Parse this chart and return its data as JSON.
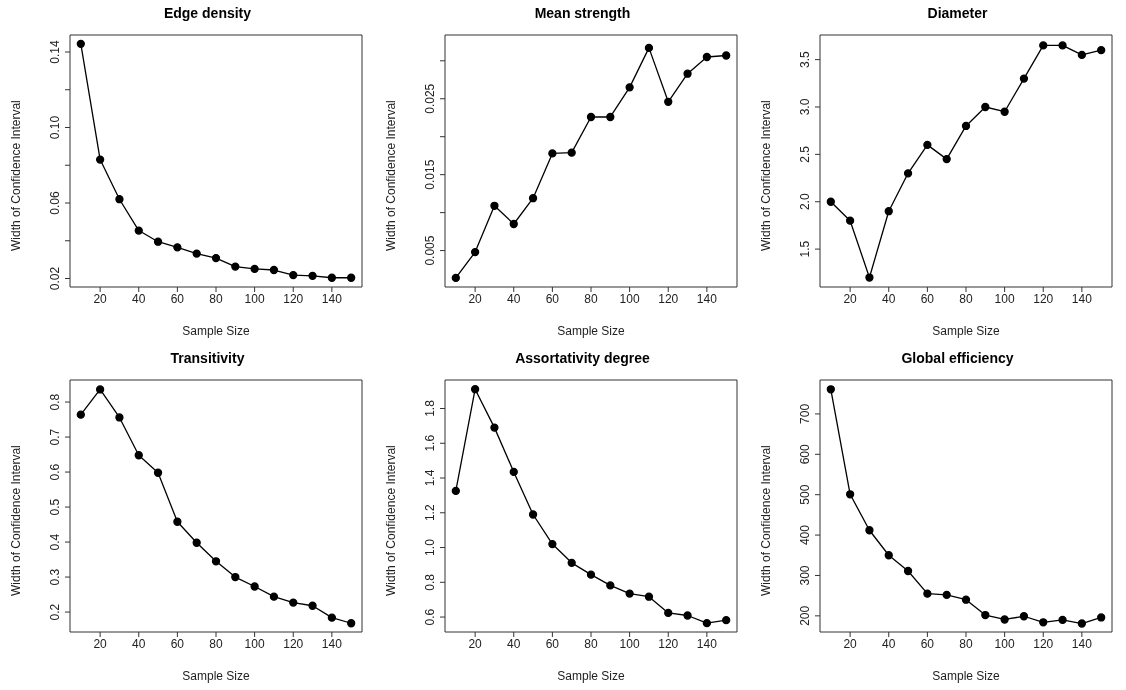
{
  "chart_data": [
    {
      "type": "line",
      "title": "Edge density",
      "xlabel": "Sample Size",
      "ylabel": "Width of Confidence Interval",
      "x": [
        10,
        20,
        30,
        40,
        50,
        60,
        70,
        80,
        90,
        100,
        110,
        120,
        130,
        140,
        150
      ],
      "color": "#000000",
      "marker": "circle",
      "line_style": "solid",
      "values": [
        0.1443,
        0.083,
        0.062,
        0.0454,
        0.0395,
        0.0365,
        0.0332,
        0.0308,
        0.0263,
        0.0251,
        0.0245,
        0.0218,
        0.0214,
        0.0204,
        0.0204
      ],
      "xlim": [
        4.4,
        155.6
      ],
      "xticks": [
        20,
        40,
        60,
        80,
        100,
        120,
        140
      ],
      "ylim": [
        0.0155,
        0.149
      ],
      "yticks": [
        0.02,
        {
          "value": 0.04,
          "label": null
        },
        0.06,
        {
          "value": 0.08,
          "label": null
        },
        {
          "value": 0.1,
          "label": "0.10"
        },
        {
          "value": 0.12,
          "label": null
        },
        0.14
      ]
    },
    {
      "type": "line",
      "title": "Mean strength",
      "xlabel": "Sample Size",
      "ylabel": "Width of Confidence Interval",
      "x": [
        10,
        20,
        30,
        40,
        50,
        60,
        70,
        80,
        90,
        100,
        110,
        120,
        130,
        140,
        150
      ],
      "color": "#000000",
      "marker": "circle",
      "line_style": "solid",
      "values": [
        0.0014,
        0.0048,
        0.0109,
        0.0085,
        0.0119,
        0.0178,
        0.0179,
        0.0226,
        0.0226,
        0.0265,
        0.0317,
        0.0246,
        0.0283,
        0.0305,
        0.0307
      ],
      "xlim": [
        4.4,
        155.6
      ],
      "xticks": [
        20,
        40,
        60,
        80,
        100,
        120,
        140
      ],
      "ylim": [
        0.0002,
        0.0334
      ],
      "yticks": [
        0.005,
        {
          "value": 0.01,
          "label": null
        },
        0.015,
        {
          "value": 0.02,
          "label": null
        },
        0.025,
        {
          "value": 0.03,
          "label": null
        }
      ]
    },
    {
      "type": "line",
      "title": "Diameter",
      "xlabel": "Sample Size",
      "ylabel": "Width of Confidence Interval",
      "x": [
        10,
        20,
        30,
        40,
        50,
        60,
        70,
        80,
        90,
        100,
        110,
        120,
        130,
        140,
        150
      ],
      "color": "#000000",
      "marker": "circle",
      "line_style": "solid",
      "values": [
        2.0,
        1.8,
        1.2,
        1.9,
        2.3,
        2.6,
        2.45,
        2.8,
        3.0,
        2.95,
        3.3,
        3.65,
        3.65,
        3.55,
        3.6
      ],
      "xlim": [
        4.4,
        155.6
      ],
      "xticks": [
        20,
        40,
        60,
        80,
        100,
        120,
        140
      ],
      "ylim": [
        1.1,
        3.76
      ],
      "yticks": [
        {
          "value": 1.5,
          "label": "1.5"
        },
        {
          "value": 2,
          "label": "2.0"
        },
        {
          "value": 2.5,
          "label": "2.5"
        },
        {
          "value": 3,
          "label": "3.0"
        },
        {
          "value": 3.5,
          "label": "3.5"
        }
      ]
    },
    {
      "type": "line",
      "title": "Transitivity",
      "xlabel": "Sample Size",
      "ylabel": "Width of Confidence Interval",
      "x": [
        10,
        20,
        30,
        40,
        50,
        60,
        70,
        80,
        90,
        100,
        110,
        120,
        130,
        140,
        150
      ],
      "color": "#000000",
      "marker": "circle",
      "line_style": "solid",
      "values": [
        0.764,
        0.836,
        0.756,
        0.648,
        0.598,
        0.458,
        0.398,
        0.345,
        0.3,
        0.273,
        0.244,
        0.227,
        0.218,
        0.184,
        0.168
      ],
      "xlim": [
        4.4,
        155.6
      ],
      "xticks": [
        20,
        40,
        60,
        80,
        100,
        120,
        140
      ],
      "ylim": [
        0.143,
        0.863
      ],
      "yticks": [
        0.2,
        0.3,
        0.4,
        0.5,
        0.6,
        0.7,
        0.8
      ]
    },
    {
      "type": "line",
      "title": "Assortativity degree",
      "xlabel": "Sample Size",
      "ylabel": "Width of Confidence Interval",
      "x": [
        10,
        20,
        30,
        40,
        50,
        60,
        70,
        80,
        90,
        100,
        110,
        120,
        130,
        140,
        150
      ],
      "color": "#000000",
      "marker": "circle",
      "line_style": "solid",
      "values": [
        1.326,
        1.911,
        1.69,
        1.435,
        1.19,
        1.02,
        0.912,
        0.844,
        0.782,
        0.735,
        0.717,
        0.624,
        0.609,
        0.565,
        0.582
      ],
      "xlim": [
        4.4,
        155.6
      ],
      "xticks": [
        20,
        40,
        60,
        80,
        100,
        120,
        140
      ],
      "ylim": [
        0.514,
        1.964
      ],
      "yticks": [
        0.6,
        0.8,
        {
          "value": 1,
          "label": "1.0"
        },
        1.2,
        1.4,
        1.6,
        1.8
      ]
    },
    {
      "type": "line",
      "title": "Global efficiency",
      "xlabel": "Sample Size",
      "ylabel": "Width of Confidence Interval",
      "x": [
        10,
        20,
        30,
        40,
        50,
        60,
        70,
        80,
        90,
        100,
        110,
        120,
        130,
        140,
        150
      ],
      "color": "#000000",
      "marker": "circle",
      "line_style": "solid",
      "values": [
        761,
        501,
        412,
        350,
        311,
        255,
        252,
        240,
        202,
        191,
        199,
        184,
        190,
        181,
        196
      ],
      "xlim": [
        4.4,
        155.6
      ],
      "xticks": [
        20,
        40,
        60,
        80,
        100,
        120,
        140
      ],
      "ylim": [
        160,
        784
      ],
      "yticks": [
        200,
        300,
        400,
        500,
        600,
        700
      ]
    }
  ]
}
